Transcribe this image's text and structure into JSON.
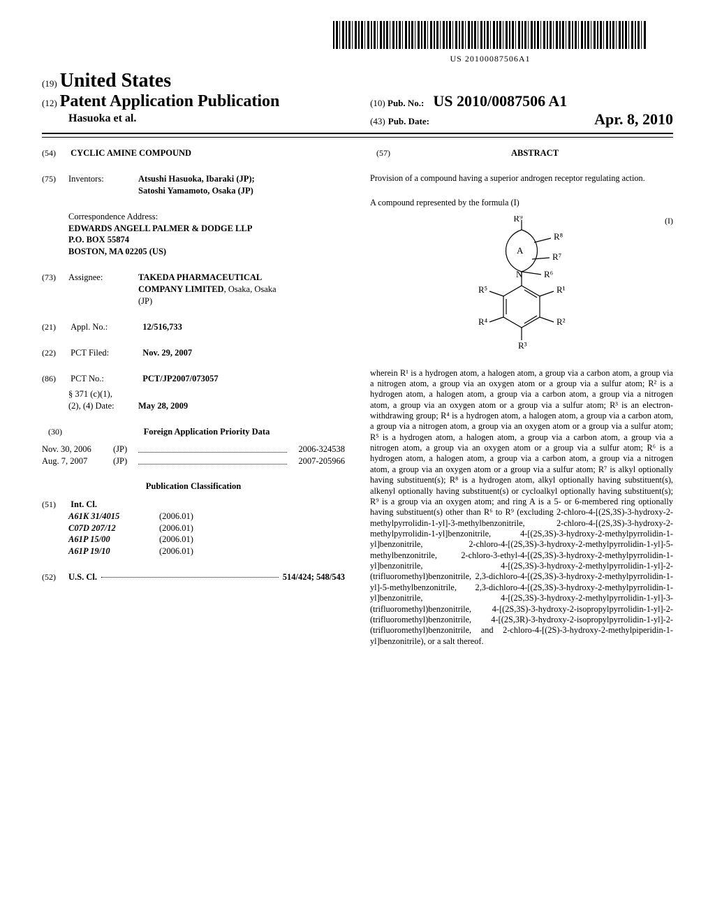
{
  "barcode_text": "US 20100087506A1",
  "header": {
    "code19": "(19)",
    "country": "United States",
    "code12": "(12)",
    "pub_type": "Patent Application Publication",
    "authors": "Hasuoka et al.",
    "code10": "(10)",
    "pubno_label": "Pub. No.:",
    "pubno": "US 2010/0087506 A1",
    "code43": "(43)",
    "pubdate_label": "Pub. Date:",
    "pubdate": "Apr. 8, 2010"
  },
  "left": {
    "c54": "(54)",
    "title": "CYCLIC AMINE COMPOUND",
    "c75": "(75)",
    "inventors_label": "Inventors:",
    "inventors": "Atsushi Hasuoka, Ibaraki (JP);\nSatoshi Yamamoto, Osaka (JP)",
    "correspondence_label": "Correspondence Address:",
    "correspondence": "EDWARDS ANGELL PALMER & DODGE LLP\nP.O. BOX 55874\nBOSTON, MA 02205 (US)",
    "c73": "(73)",
    "assignee_label": "Assignee:",
    "assignee": "TAKEDA PHARMACEUTICAL COMPANY LIMITED, Osaka, Osaka (JP)",
    "c21": "(21)",
    "applno_label": "Appl. No.:",
    "applno": "12/516,733",
    "c22": "(22)",
    "pctfiled_label": "PCT Filed:",
    "pctfiled": "Nov. 29, 2007",
    "c86": "(86)",
    "pctno_label": "PCT No.:",
    "pctno": "PCT/JP2007/073057",
    "s371_label": "§ 371 (c)(1),\n(2), (4) Date:",
    "s371": "May 28, 2009",
    "c30": "(30)",
    "foreign_title": "Foreign Application Priority Data",
    "priority": [
      {
        "date": "Nov. 30, 2006",
        "country": "(JP)",
        "number": "2006-324538"
      },
      {
        "date": "Aug. 7, 2007",
        "country": "(JP)",
        "number": "2007-205966"
      }
    ],
    "pubclass_title": "Publication Classification",
    "c51": "(51)",
    "intcl_label": "Int. Cl.",
    "intcl": [
      {
        "code": "A61K 31/4015",
        "date": "(2006.01)"
      },
      {
        "code": "C07D 207/12",
        "date": "(2006.01)"
      },
      {
        "code": "A61P 15/00",
        "date": "(2006.01)"
      },
      {
        "code": "A61P 19/10",
        "date": "(2006.01)"
      }
    ],
    "c52": "(52)",
    "uscl_label": "U.S. Cl.",
    "uscl": "514/424; 548/543"
  },
  "right": {
    "c57": "(57)",
    "abstract_label": "ABSTRACT",
    "abstract_intro": "Provision of a compound having a superior androgen receptor regulating action.",
    "formula_intro": "A compound represented by the formula (I)",
    "formula_label": "(I)",
    "structure": {
      "ring_A_label": "A",
      "labels": {
        "r1": "R¹",
        "r2": "R²",
        "r3": "R³",
        "r4": "R⁴",
        "r5": "R⁵",
        "r6": "R⁶",
        "r7": "R⁷",
        "r8": "R⁸",
        "r9": "R⁹",
        "N": "N"
      },
      "stroke": "#000000",
      "bg": "#ffffff"
    },
    "wherein": "wherein R¹ is a hydrogen atom, a halogen atom, a group via a carbon atom, a group via a nitrogen atom, a group via an oxygen atom or a group via a sulfur atom; R² is a hydrogen atom, a halogen atom, a group via a carbon atom, a group via a nitrogen atom, a group via an oxygen atom or a group via a sulfur atom; R³ is an electron-withdrawing group; R⁴ is a hydrogen atom, a halogen atom, a group via a carbon atom, a group via a nitrogen atom, a group via an oxygen atom or a group via a sulfur atom; R⁵ is a hydrogen atom, a halogen atom, a group via a carbon atom, a group via a nitrogen atom, a group via an oxygen atom or a group via a sulfur atom; R⁶ is a hydrogen atom, a halogen atom, a group via a carbon atom, a group via a nitrogen atom, a group via an oxygen atom or a group via a sulfur atom; R⁷ is alkyl optionally having substituent(s); R⁸ is a hydrogen atom, alkyl optionally having substituent(s), alkenyl optionally having substituent(s) or cycloalkyl optionally having substituent(s); R⁹ is a group via an oxygen atom; and ring A is a 5- or 6-membered ring optionally having substituent(s) other than R⁶ to R⁹ (excluding 2-chloro-4-[(2S,3S)-3-hydroxy-2-methylpyrrolidin-1-yl]-3-methylbenzonitrile, 2-chloro-4-[(2S,3S)-3-hydroxy-2-methylpyrrolidin-1-yl]benzonitrile, 4-[(2S,3S)-3-hydroxy-2-methylpyrrolidin-1-yl]benzonitrile, 2-chloro-4-[(2S,3S)-3-hydroxy-2-methylpyrrolidin-1-yl]-5-methylbenzonitrile, 2-chloro-3-ethyl-4-[(2S,3S)-3-hydroxy-2-methylpyrrolidin-1-yl]benzonitrile, 4-[(2S,3S)-3-hydroxy-2-methylpyrrolidin-1-yl]-2-(trifluoromethyl)benzonitrile, 2,3-dichloro-4-[(2S,3S)-3-hydroxy-2-methylpyrrolidin-1-yl]-5-methylbenzonitrile, 2,3-dichloro-4-[(2S,3S)-3-hydroxy-2-methylpyrrolidin-1-yl]benzonitrile, 4-[(2S,3S)-3-hydroxy-2-methylpyrrolidin-1-yl]-3-(trifluoromethyl)benzonitrile, 4-[(2S,3S)-3-hydroxy-2-isopropylpyrrolidin-1-yl]-2-(trifluoromethyl)benzonitrile, 4-[(2S,3R)-3-hydroxy-2-isopropylpyrrolidin-1-yl]-2-(trifluoromethyl)benzonitrile, and 2-chloro-4-[(2S)-3-hydroxy-2-methylpiperidin-1-yl]benzonitrile), or a salt thereof."
  }
}
